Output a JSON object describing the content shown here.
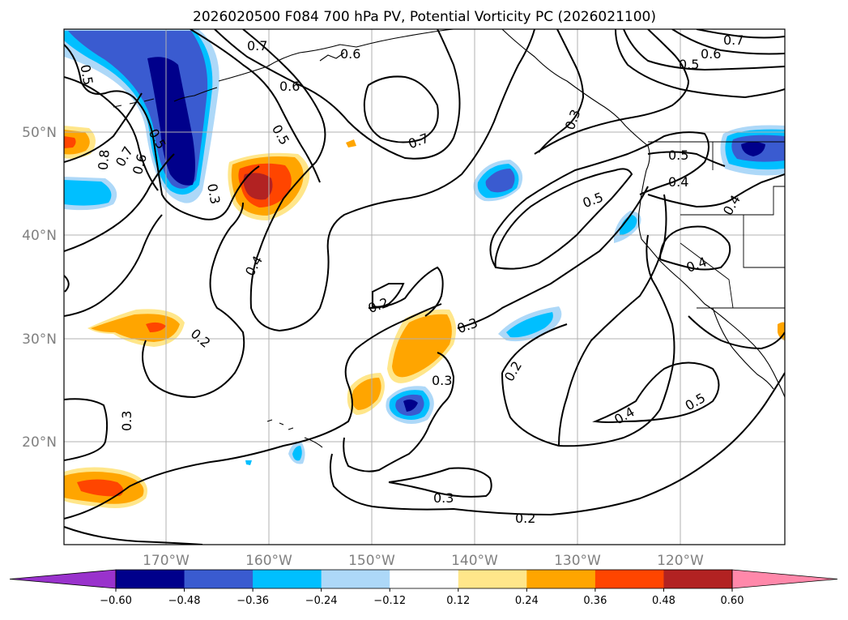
{
  "title": "2026020500 F084 700 hPa PV, Potential Vorticity PC (2026021100)",
  "lon_labels": [
    "170°W",
    "160°W",
    "150°W",
    "140°W",
    "130°W",
    "120°W"
  ],
  "lat_labels": [
    "50°N",
    "40°N",
    "30°N",
    "20°N"
  ],
  "colorbar": {
    "ticks": [
      "−0.60",
      "−0.48",
      "−0.36",
      "−0.24",
      "−0.12",
      "0.12",
      "0.24",
      "0.36",
      "0.48",
      "0.60"
    ],
    "colors": [
      "#9932cc",
      "#00008b",
      "#3a5bd0",
      "#00bfff",
      "#add8f8",
      "#ffffff",
      "#ffe68a",
      "#ffa500",
      "#ff4500",
      "#b22222",
      "#ff88aa"
    ]
  },
  "contour_labels": [
    "0.7",
    "0.6",
    "0.5",
    "0.5",
    "0.6",
    "0.5",
    "0.7",
    "0.8",
    "0.6",
    "0.3",
    "0.5",
    "0.4",
    "0.2",
    "0.2",
    "0.3",
    "0.7",
    "0.3",
    "0.5",
    "0.4",
    "0.7",
    "0.6",
    "0.5",
    "0.4",
    "0.4",
    "0.3",
    "0.3",
    "0.2",
    "0.4",
    "0.5",
    "0.3",
    "0.2",
    "0.3"
  ]
}
